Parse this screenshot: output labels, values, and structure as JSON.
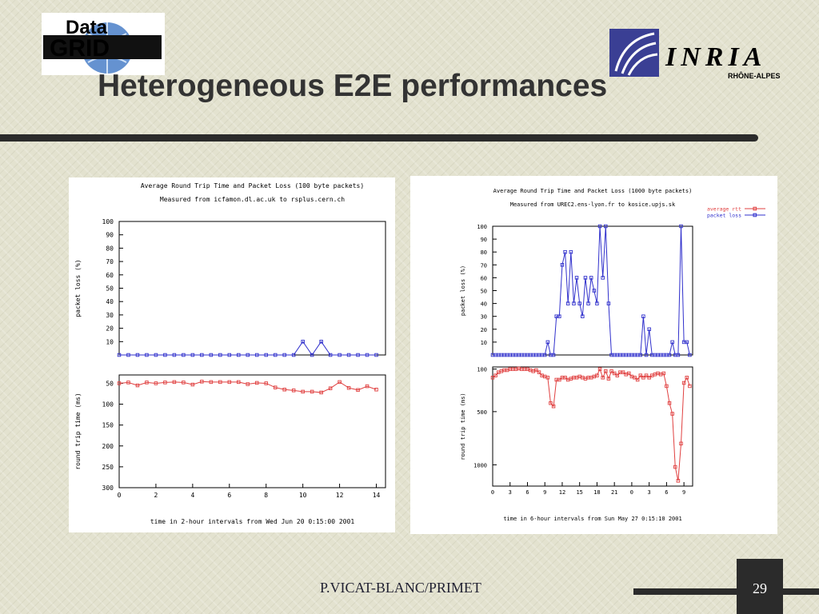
{
  "slide": {
    "title": "Heterogeneous E2E performances",
    "footer": "P.VICAT-BLANC/PRIMET",
    "page_number": "29",
    "logo_left": "DataGRID",
    "logo_right": "INRIA",
    "logo_right_sub": "RHÔNE-ALPES"
  },
  "chart_data": [
    {
      "type": "line",
      "title": "Average Round Trip Time and Packet Loss (100 byte packets)",
      "subtitle": "Measured from icfamon.dl.ac.uk to rsplus.cern.ch",
      "xlabel": "time in 2-hour intervals from Wed Jun 20  0:15:00 2001",
      "xticks": [
        "0",
        "2",
        "4",
        "6",
        "8",
        "10",
        "12",
        "14"
      ],
      "xlim": [
        0,
        14.5
      ],
      "top": {
        "ylabel": "packet loss (%)",
        "ylim": [
          0,
          100
        ],
        "yticks": [
          "10",
          "20",
          "30",
          "40",
          "50",
          "60",
          "70",
          "80",
          "90",
          "100"
        ],
        "series": [
          {
            "color": "#3030cc",
            "x": [
              0,
              0.5,
              1,
              1.5,
              2,
              2.5,
              3,
              3.5,
              4,
              4.5,
              5,
              5.5,
              6,
              6.5,
              7,
              7.5,
              8,
              8.5,
              9,
              9.5,
              10,
              10.5,
              11,
              11.5,
              12,
              12.5,
              13,
              13.5,
              14
            ],
            "y": [
              0,
              0,
              0,
              0,
              0,
              0,
              0,
              0,
              0,
              0,
              0,
              0,
              0,
              0,
              0,
              0,
              0,
              0,
              0,
              0,
              10,
              0,
              10,
              0,
              0,
              0,
              0,
              0,
              0
            ]
          }
        ]
      },
      "bottom": {
        "ylabel": "round trip time (ms)",
        "ylim": [
          300,
          30
        ],
        "yticks": [
          "50",
          "100",
          "150",
          "200",
          "250",
          "300"
        ],
        "series": [
          {
            "color": "#e04040",
            "x": [
              0,
              0.5,
              1,
              1.5,
              2,
              2.5,
              3,
              3.5,
              4,
              4.5,
              5,
              5.5,
              6,
              6.5,
              7,
              7.5,
              8,
              8.5,
              9,
              9.5,
              10,
              10.5,
              11,
              11.5,
              12,
              12.5,
              13,
              13.5,
              14
            ],
            "y": [
              50,
              48,
              55,
              48,
              50,
              48,
              47,
              48,
              53,
              46,
              47,
              47,
              47,
              47,
              52,
              49,
              50,
              60,
              65,
              67,
              70,
              70,
              72,
              62,
              47,
              61,
              66,
              57,
              65
            ]
          }
        ]
      }
    },
    {
      "type": "line",
      "title": "Average Round Trip Time and Packet Loss (1000 byte packets)",
      "subtitle": "Measured from UREC2.ens-lyon.fr to kosice.upjs.sk",
      "xlabel": "time in 6-hour intervals from Sun May 27  0:15:10 2001",
      "xticks": [
        "0",
        "3",
        "6",
        "9",
        "12",
        "15",
        "18",
        "21",
        "0",
        "3",
        "6",
        "9"
      ],
      "xlim": [
        0,
        34.5
      ],
      "legend": {
        "placement": "top-right",
        "entries": [
          {
            "name": "average rtt",
            "color": "#e04040"
          },
          {
            "name": "packet loss",
            "color": "#3030cc"
          }
        ]
      },
      "top": {
        "ylabel": "packet loss (%)",
        "ylim": [
          0,
          100
        ],
        "yticks": [
          "10",
          "20",
          "30",
          "40",
          "50",
          "60",
          "70",
          "80",
          "90",
          "100"
        ],
        "series": [
          {
            "color": "#3030cc",
            "x": [
              0,
              0.5,
              1,
              1.5,
              2,
              2.5,
              3,
              3.5,
              4,
              4.5,
              5,
              5.5,
              6,
              6.5,
              7,
              7.5,
              8,
              8.5,
              9,
              9.5,
              10,
              10.5,
              11,
              11.5,
              12,
              12.5,
              13,
              13.5,
              14,
              14.5,
              15,
              15.5,
              16,
              16.5,
              17,
              17.5,
              18,
              18.5,
              19,
              19.5,
              20,
              20.5,
              21,
              21.5,
              22,
              22.5,
              23,
              23.5,
              24,
              24.5,
              25,
              25.5,
              26,
              26.5,
              27,
              27.5,
              28,
              28.5,
              29,
              29.5,
              30,
              30.5,
              31,
              31.5,
              32,
              32.5,
              33,
              33.5,
              34
            ],
            "y": [
              0,
              0,
              0,
              0,
              0,
              0,
              0,
              0,
              0,
              0,
              0,
              0,
              0,
              0,
              0,
              0,
              0,
              0,
              0,
              10,
              0,
              0,
              30,
              30,
              70,
              80,
              40,
              80,
              40,
              60,
              40,
              30,
              60,
              40,
              60,
              50,
              40,
              100,
              60,
              100,
              40,
              0,
              0,
              0,
              0,
              0,
              0,
              0,
              0,
              0,
              0,
              0,
              30,
              0,
              20,
              0,
              0,
              0,
              0,
              0,
              0,
              0,
              10,
              0,
              0,
              100,
              10,
              10,
              0
            ]
          }
        ]
      },
      "bottom": {
        "ylabel": "round trip time (ms)",
        "ylim": [
          1200,
          80
        ],
        "yticks": [
          "100",
          "500",
          "1000"
        ],
        "series": [
          {
            "color": "#e04040",
            "x": [
              0,
              0.5,
              1,
              1.5,
              2,
              2.5,
              3,
              3.5,
              4,
              4.5,
              5,
              5.5,
              6,
              6.5,
              7,
              7.5,
              8,
              8.5,
              9,
              9.5,
              10,
              10.5,
              11,
              11.5,
              12,
              12.5,
              13,
              13.5,
              14,
              14.5,
              15,
              15.5,
              16,
              16.5,
              17,
              17.5,
              18,
              18.5,
              19,
              19.5,
              20,
              20.5,
              21,
              21.5,
              22,
              22.5,
              23,
              23.5,
              24,
              24.5,
              25,
              25.5,
              26,
              26.5,
              27,
              27.5,
              28,
              28.5,
              29,
              29.5,
              30,
              30.5,
              31,
              31.5,
              32,
              32.5,
              33,
              33.5,
              34
            ],
            "y": [
              180,
              160,
              130,
              120,
              110,
              110,
              100,
              100,
              100,
              95,
              100,
              100,
              100,
              110,
              120,
              110,
              130,
              160,
              170,
              180,
              420,
              450,
              200,
              200,
              180,
              180,
              200,
              190,
              180,
              180,
              170,
              180,
              190,
              180,
              180,
              170,
              160,
              100,
              180,
              120,
              190,
              120,
              140,
              160,
              130,
              130,
              150,
              140,
              170,
              180,
              200,
              160,
              180,
              160,
              180,
              160,
              150,
              140,
              150,
              140,
              260,
              420,
              520,
              1020,
              1150,
              800,
              230,
              180,
              260
            ]
          }
        ]
      }
    }
  ]
}
